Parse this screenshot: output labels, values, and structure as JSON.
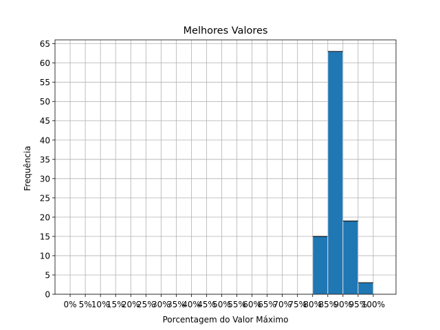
{
  "chart_data": {
    "type": "bar",
    "title": "Melhores Valores",
    "xlabel": "Porcentagem do Valor Máximo",
    "ylabel": "Frequência",
    "ylim": [
      0,
      66
    ],
    "y_ticks": [
      0,
      5,
      10,
      15,
      20,
      25,
      30,
      35,
      40,
      45,
      50,
      55,
      60,
      65
    ],
    "xlim": [
      -5,
      107.5
    ],
    "x_ticks": [
      0,
      5,
      10,
      15,
      20,
      25,
      30,
      35,
      40,
      45,
      50,
      55,
      60,
      65,
      70,
      75,
      80,
      85,
      90,
      95,
      100
    ],
    "x_tick_labels": [
      "0%",
      "5%",
      "10%",
      "15%",
      "20%",
      "25%",
      "30%",
      "35%",
      "40%",
      "45%",
      "50%",
      "55%",
      "60%",
      "65%",
      "70%",
      "75%",
      "80%",
      "85%",
      "90%",
      "95%",
      "100%"
    ],
    "grid": true,
    "bar_color": "#1f77b4",
    "bar_edge_color": "#d9d9d9",
    "bins": [
      {
        "start": 80,
        "end": 85,
        "value": 15
      },
      {
        "start": 85,
        "end": 90,
        "value": 63
      },
      {
        "start": 90,
        "end": 95,
        "value": 19
      },
      {
        "start": 95,
        "end": 100,
        "value": 3
      }
    ]
  }
}
